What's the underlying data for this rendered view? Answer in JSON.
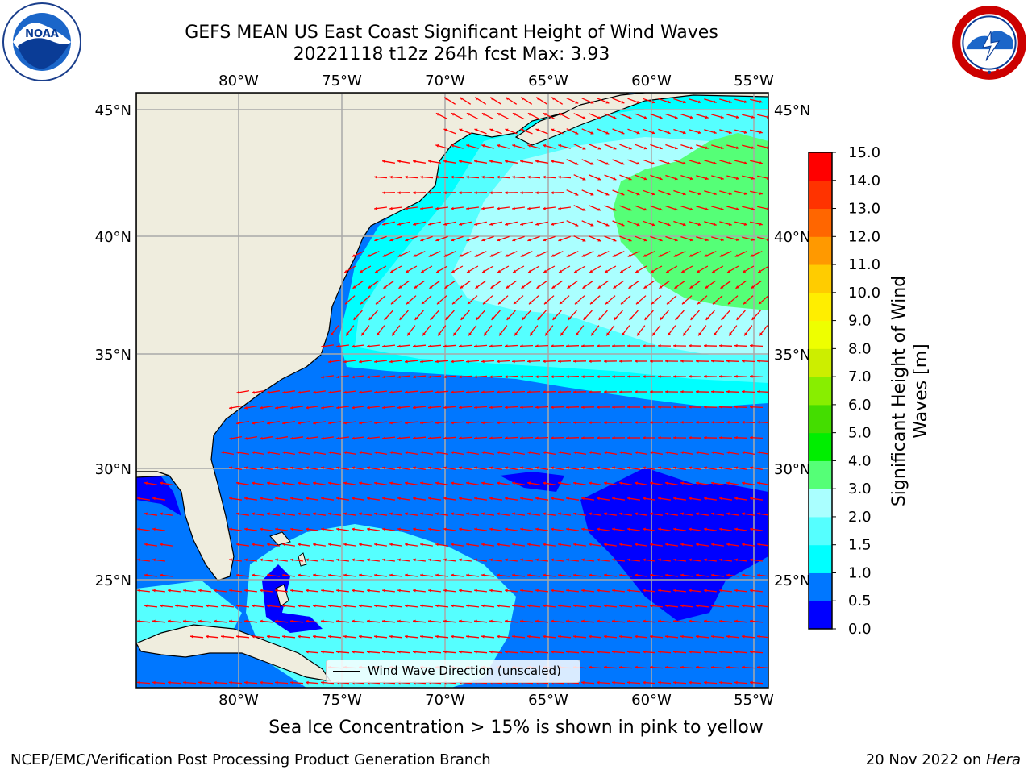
{
  "title": {
    "line1": "GEFS MEAN US East Coast Significant Height of Wind Waves",
    "line2": "20221118 t12z 264h fcst   Max: 3.93"
  },
  "logos": {
    "left": {
      "name": "noaa-logo",
      "text": "NOAA"
    },
    "right": {
      "name": "nws-logo",
      "text": "NATIONAL WEATHER SERVICE"
    }
  },
  "map": {
    "lon_range": [
      -85,
      -54.5
    ],
    "lat_range": [
      20.3,
      45.8
    ],
    "lon_ticks": [
      "80°W",
      "75°W",
      "70°W",
      "65°W",
      "60°W",
      "55°W"
    ],
    "lat_ticks_left": [
      "45°N",
      "40°N",
      "35°N",
      "30°N",
      "25°N"
    ],
    "lat_ticks_right": [
      "45°N",
      "40°N",
      "35°N",
      "30°N",
      "25°N"
    ],
    "grid": true,
    "land_color": "#efedde",
    "vector_color": "#ff0000",
    "legend_label": "Wind Wave Direction (unscaled)",
    "legend_position": "bottom-center"
  },
  "colorbar": {
    "title": "Significant Height of Wind Waves [m]",
    "levels": [
      "0.0",
      "0.5",
      "1.0",
      "1.5",
      "2.0",
      "3.0",
      "4.0",
      "5.0",
      "6.0",
      "7.0",
      "8.0",
      "9.0",
      "10.0",
      "11.0",
      "12.0",
      "13.0",
      "14.0",
      "15.0"
    ],
    "colors": [
      "#0000ff",
      "#0077ff",
      "#00ffff",
      "#55ffff",
      "#aaffff",
      "#55ff77",
      "#00ee00",
      "#44dd00",
      "#88ee00",
      "#ccee00",
      "#eeff00",
      "#ffee00",
      "#ffcc00",
      "#ff9900",
      "#ff6600",
      "#ff3300",
      "#ff0000"
    ]
  },
  "footer": {
    "ice_note": "Sea Ice Concentration > 15% is shown in pink to yellow",
    "credit_left": "NCEP/EMC/Verification Post Processing Product Generation Branch",
    "date": "20 Nov 2022 on ",
    "host": "Hera"
  }
}
